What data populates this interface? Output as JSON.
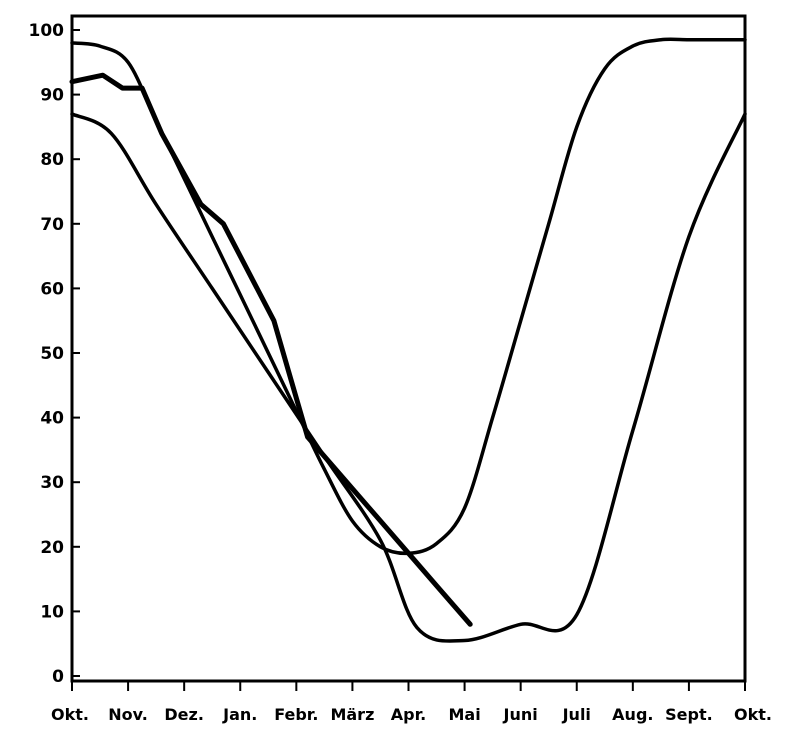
{
  "chart_data": {
    "type": "line",
    "title": "",
    "xlabel": "",
    "ylabel": "",
    "categories": [
      "Okt.",
      "Nov.",
      "Dez.",
      "Jan.",
      "Febr.",
      "März",
      "Apr.",
      "Mai",
      "Juni",
      "Juli",
      "Aug.",
      "Sept.",
      "Okt."
    ],
    "y_ticks": [
      "0",
      "10",
      "20",
      "30",
      "40",
      "50",
      "60",
      "70",
      "80",
      "90",
      "100"
    ],
    "ylim": [
      0,
      100
    ],
    "xlim": [
      0,
      12
    ],
    "grid": false,
    "legend": "none",
    "series": [
      {
        "style": "thin",
        "points": [
          [
            0,
            98
          ],
          [
            0.5,
            97.5
          ],
          [
            1,
            95
          ],
          [
            1.5,
            86
          ],
          [
            2,
            77
          ],
          [
            2.5,
            68
          ],
          [
            3,
            59
          ],
          [
            3.5,
            50
          ],
          [
            4,
            41
          ],
          [
            4.5,
            32
          ],
          [
            5,
            24
          ],
          [
            5.5,
            20
          ],
          [
            6,
            19
          ],
          [
            6.5,
            20.5
          ],
          [
            7,
            26
          ],
          [
            7.5,
            40
          ],
          [
            8,
            55
          ],
          [
            8.5,
            70
          ],
          [
            9,
            85
          ],
          [
            9.5,
            94
          ],
          [
            10,
            97.5
          ],
          [
            10.5,
            98.5
          ],
          [
            11,
            98.5
          ],
          [
            11.5,
            98.5
          ],
          [
            12,
            98.5
          ]
        ]
      },
      {
        "style": "bold",
        "points": [
          [
            0,
            92
          ],
          [
            0.55,
            93
          ],
          [
            0.9,
            91
          ],
          [
            1.25,
            91
          ],
          [
            1.6,
            84
          ],
          [
            2.3,
            73
          ],
          [
            2.7,
            70
          ],
          [
            3.6,
            55
          ],
          [
            4.2,
            37
          ],
          [
            4.7,
            32
          ],
          [
            5.3,
            26
          ],
          [
            5.9,
            20
          ],
          [
            6.5,
            14
          ],
          [
            7.1,
            8
          ]
        ]
      },
      {
        "style": "thin",
        "points": [
          [
            0,
            87
          ],
          [
            0.7,
            84
          ],
          [
            1.5,
            73
          ],
          [
            2.5,
            60
          ],
          [
            3.5,
            47
          ],
          [
            4.5,
            34
          ],
          [
            5.5,
            21
          ],
          [
            6.15,
            7.5
          ],
          [
            7,
            5.5
          ],
          [
            8,
            8
          ],
          [
            9,
            9.5
          ],
          [
            10,
            38
          ],
          [
            11,
            68
          ],
          [
            12,
            87
          ]
        ]
      }
    ]
  }
}
